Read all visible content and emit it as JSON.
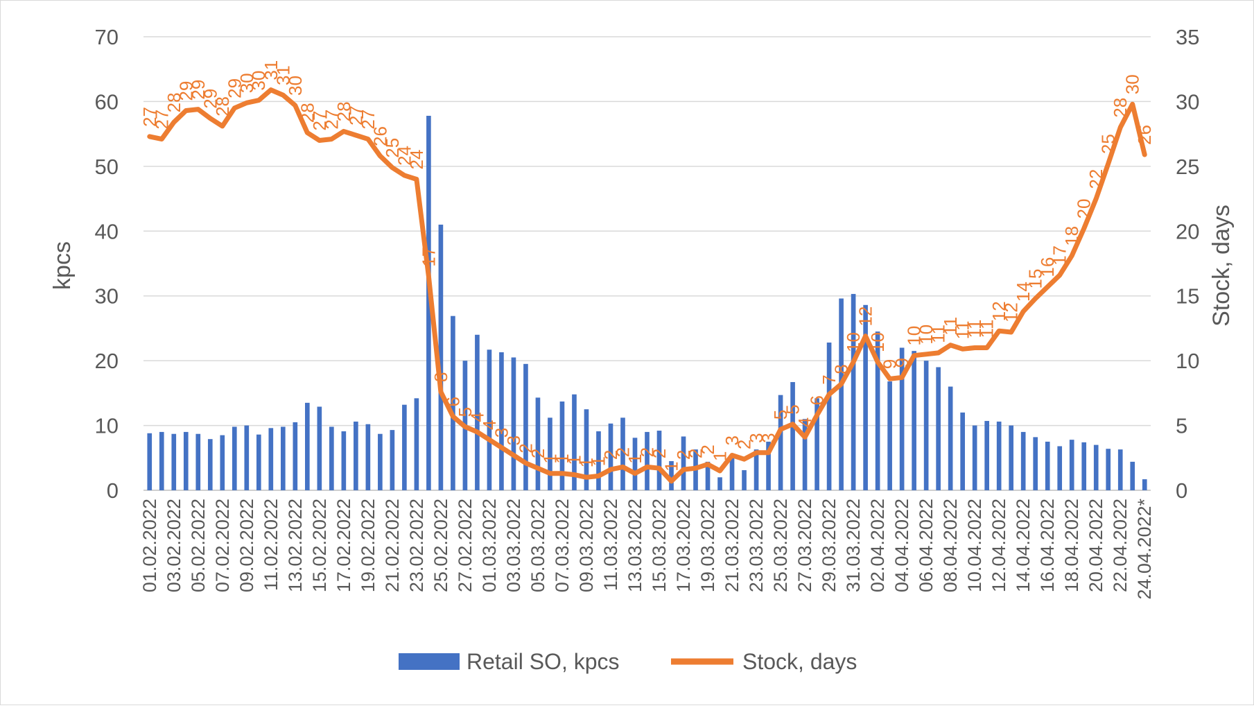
{
  "chart_data": {
    "type": "bar+line",
    "title": "",
    "dates": [
      "01.02.2022",
      "02.02.2022",
      "03.02.2022",
      "04.02.2022",
      "05.02.2022",
      "06.02.2022",
      "07.02.2022",
      "08.02.2022",
      "09.02.2022",
      "10.02.2022",
      "11.02.2022",
      "12.02.2022",
      "13.02.2022",
      "14.02.2022",
      "15.02.2022",
      "16.02.2022",
      "17.02.2022",
      "18.02.2022",
      "19.02.2022",
      "20.02.2022",
      "21.02.2022",
      "22.02.2022",
      "23.02.2022",
      "24.02.2022",
      "25.02.2022",
      "26.02.2022",
      "27.02.2022",
      "28.02.2022",
      "01.03.2022",
      "02.03.2022",
      "03.03.2022",
      "04.03.2022",
      "05.03.2022",
      "06.03.2022",
      "07.03.2022",
      "08.03.2022",
      "09.03.2022",
      "10.03.2022",
      "11.03.2022",
      "12.03.2022",
      "13.03.2022",
      "14.03.2022",
      "15.03.2022",
      "16.03.2022",
      "17.03.2022",
      "18.03.2022",
      "19.03.2022",
      "20.03.2022",
      "21.03.2022",
      "22.03.2022",
      "23.03.2022",
      "24.03.2022",
      "25.03.2022",
      "26.03.2022",
      "27.03.2022",
      "28.03.2022",
      "29.03.2022",
      "30.03.2022",
      "31.03.2022",
      "01.04.2022",
      "02.04.2022",
      "03.04.2022",
      "04.04.2022",
      "05.04.2022",
      "06.04.2022",
      "07.04.2022",
      "08.04.2022",
      "09.04.2022",
      "10.04.2022",
      "11.04.2022",
      "12.04.2022",
      "13.04.2022",
      "14.04.2022",
      "15.04.2022",
      "16.04.2022",
      "17.04.2022",
      "18.04.2022",
      "19.04.2022",
      "20.04.2022",
      "21.04.2022",
      "22.04.2022",
      "23.04.2022",
      "24.04.2022*"
    ],
    "x_tick_labels": [
      "01.02.2022",
      "03.02.2022",
      "05.02.2022",
      "07.02.2022",
      "09.02.2022",
      "11.02.2022",
      "13.02.2022",
      "15.02.2022",
      "17.02.2022",
      "19.02.2022",
      "21.02.2022",
      "23.02.2022",
      "25.02.2022",
      "27.02.2022",
      "01.03.2022",
      "03.03.2022",
      "05.03.2022",
      "07.03.2022",
      "09.03.2022",
      "11.03.2022",
      "13.03.2022",
      "15.03.2022",
      "17.03.2022",
      "19.03.2022",
      "21.03.2022",
      "23.03.2022",
      "25.03.2022",
      "27.03.2022",
      "29.03.2022",
      "31.03.2022",
      "02.04.2022",
      "04.04.2022",
      "06.04.2022",
      "08.04.2022",
      "10.04.2022",
      "12.04.2022",
      "14.04.2022",
      "16.04.2022",
      "18.04.2022",
      "20.04.2022",
      "22.04.2022",
      "24.04.2022*"
    ],
    "series": [
      {
        "name": "Retail SO, kpcs",
        "type": "bar",
        "axis": "left",
        "color": "#4472c4",
        "values": [
          8.8,
          9,
          8.7,
          9,
          8.7,
          7.9,
          8.5,
          9.8,
          10,
          8.6,
          9.6,
          9.8,
          10.5,
          13.5,
          12.9,
          9.8,
          9.1,
          10.6,
          10.2,
          8.7,
          9.3,
          13.2,
          14.2,
          57.8,
          41,
          26.9,
          20,
          24,
          21.7,
          21.3,
          20.5,
          19.5,
          14.3,
          11.2,
          13.7,
          14.8,
          12.5,
          9.1,
          10.3,
          11.2,
          8.1,
          9,
          9.2,
          4.5,
          8.3,
          6.3,
          4.4,
          2,
          5,
          3.1,
          6.3,
          7.5,
          14.7,
          16.7,
          11,
          14.2,
          22.8,
          29.6,
          30.3,
          28.6,
          24.5,
          16.8,
          22,
          21.5,
          20,
          19,
          16,
          12,
          10,
          10.7,
          10.6,
          10,
          9,
          8.2,
          7.5,
          6.8,
          7.8,
          7.4,
          7,
          6.4,
          6.3,
          4.4,
          1.7
        ]
      },
      {
        "name": "Stock, days",
        "type": "line",
        "axis": "right",
        "color": "#ed7d31",
        "values": [
          27.3,
          27.1,
          28.4,
          29.3,
          29.4,
          28.7,
          28.1,
          29.5,
          29.9,
          30.1,
          30.9,
          30.5,
          29.7,
          27.6,
          27,
          27.1,
          27.7,
          27.4,
          27.1,
          25.8,
          24.9,
          24.3,
          24,
          16.5,
          7.6,
          5.7,
          4.9,
          4.5,
          3.9,
          3.3,
          2.7,
          2.1,
          1.7,
          1.3,
          1.3,
          1.2,
          1,
          1.1,
          1.6,
          1.8,
          1.3,
          1.8,
          1.7,
          0.7,
          1.6,
          1.7,
          2,
          1.5,
          2.7,
          2.4,
          2.9,
          2.9,
          4.7,
          5.1,
          4.1,
          5.8,
          7.4,
          8.2,
          9.9,
          11.9,
          9.9,
          8.6,
          8.7,
          10.4,
          10.5,
          10.6,
          11.2,
          10.9,
          11,
          11,
          12.3,
          12.2,
          13.8,
          14.8,
          15.7,
          16.6,
          18.1,
          20.2,
          22.5,
          25.2,
          28,
          29.8,
          25.9
        ]
      }
    ],
    "line_data_labels": [
      "27",
      "27",
      "28",
      "29",
      "29",
      "29",
      "28",
      "29",
      "30",
      "30",
      "31",
      "31",
      "30",
      "28",
      "27",
      "27",
      "28",
      "27",
      "27",
      "26",
      "25",
      "24",
      "24",
      "17",
      "8",
      "6",
      "5",
      "4",
      "4",
      "3",
      "3",
      "2",
      "2",
      "1",
      "1",
      "1",
      "1",
      "1",
      "2",
      "2",
      "1",
      "2",
      "2",
      "1",
      "2",
      "2",
      "2",
      "1",
      "3",
      "2",
      "3",
      "3",
      "5",
      "5",
      "4",
      "6",
      "7",
      "8",
      "10",
      "12",
      "10",
      "9",
      "9",
      "10",
      "10",
      "11",
      "11",
      "11",
      "11",
      "11",
      "12",
      "12",
      "14",
      "15",
      "16",
      "17",
      "18",
      "20",
      "22",
      "25",
      "28",
      "30",
      "26"
    ],
    "y_left": {
      "label": "kpcs",
      "min": 0,
      "max": 70,
      "step": 10
    },
    "y_right": {
      "label": "Stock, days",
      "min": 0,
      "max": 35,
      "step": 5
    },
    "grid": true,
    "legend_position": "bottom"
  }
}
